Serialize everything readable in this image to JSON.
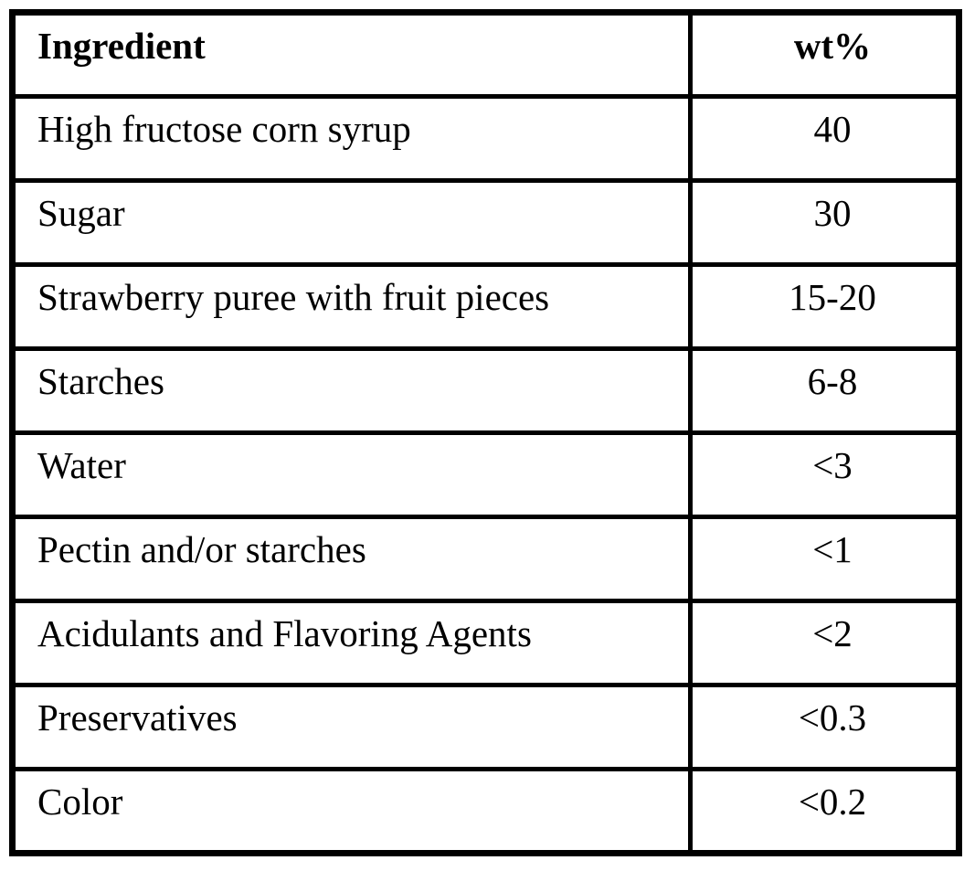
{
  "table": {
    "columns": {
      "ingredient": "Ingredient",
      "wt": "wt%"
    },
    "rows": [
      {
        "ingredient": "High fructose corn syrup",
        "wt": "40"
      },
      {
        "ingredient": "Sugar",
        "wt": "30"
      },
      {
        "ingredient": "Strawberry puree with fruit pieces",
        "wt": "15-20"
      },
      {
        "ingredient": "Starches",
        "wt": "6-8"
      },
      {
        "ingredient": "Water",
        "wt": "<3"
      },
      {
        "ingredient": "Pectin and/or starches",
        "wt": "<1"
      },
      {
        "ingredient": "Acidulants and Flavoring Agents",
        "wt": "<2"
      },
      {
        "ingredient": "Preservatives",
        "wt": "<0.3"
      },
      {
        "ingredient": "Color",
        "wt": "<0.2"
      }
    ],
    "colors": {
      "border": "#000000",
      "text": "#000000",
      "background": "#ffffff"
    }
  }
}
